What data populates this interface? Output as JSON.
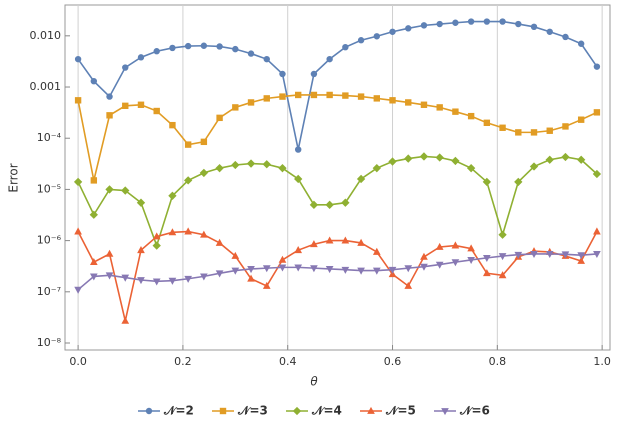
{
  "chart_data": {
    "type": "line",
    "x_label": "θ",
    "y_label": "Error",
    "log_y": true,
    "grid": "x",
    "legend": "bottom",
    "x": [
      0,
      0.03,
      0.06,
      0.09,
      0.12,
      0.15,
      0.18,
      0.21,
      0.24,
      0.27,
      0.3,
      0.33,
      0.36,
      0.39,
      0.42,
      0.45,
      0.48,
      0.51,
      0.54,
      0.57,
      0.6,
      0.63,
      0.66,
      0.69,
      0.72,
      0.75,
      0.78,
      0.81,
      0.84,
      0.87,
      0.9,
      0.93,
      0.96,
      0.99
    ],
    "xlim": [
      -0.025,
      1.015
    ],
    "xticks": [
      {
        "value": 0,
        "label": "0.0"
      },
      0.2,
      0.4,
      0.6,
      0.8,
      {
        "value": 1,
        "label": "1.0"
      }
    ],
    "ylim": [
      7.3e-09,
      0.04
    ],
    "yticks": [
      {
        "value": 1e-08,
        "label": "10⁻⁸"
      },
      {
        "value": 1e-07,
        "label": "10⁻⁷"
      },
      {
        "value": 1e-06,
        "label": "10⁻⁶"
      },
      {
        "value": 1e-05,
        "label": "10⁻⁵"
      },
      {
        "value": 0.0001,
        "label": "10⁻⁴"
      },
      0.001,
      {
        "value": 0.01,
        "label": "0.010"
      }
    ],
    "series": [
      {
        "name": "𝒩=2",
        "color": "#5e81b5",
        "marker": "circle",
        "values": [
          0.0035,
          0.0013,
          0.00065,
          0.0024,
          0.0038,
          0.005,
          0.0058,
          0.0063,
          0.0064,
          0.0062,
          0.0055,
          0.0045,
          0.0035,
          0.0018,
          6e-05,
          0.0018,
          0.0035,
          0.006,
          0.0082,
          0.0098,
          0.012,
          0.014,
          0.016,
          0.017,
          0.018,
          0.019,
          0.019,
          0.019,
          0.017,
          0.015,
          0.012,
          0.0095,
          0.007,
          0.0025
        ]
      },
      {
        "name": "𝒩=3",
        "color": "#e19c24",
        "marker": "square",
        "values": [
          0.00055,
          1.5e-05,
          0.00028,
          0.00043,
          0.00045,
          0.00034,
          0.00018,
          7.5e-05,
          8.5e-05,
          0.00025,
          0.0004,
          0.0005,
          0.0006,
          0.00065,
          0.0007,
          0.0007,
          0.0007,
          0.00068,
          0.00065,
          0.0006,
          0.00055,
          0.0005,
          0.00045,
          0.0004,
          0.00033,
          0.00027,
          0.0002,
          0.00016,
          0.00013,
          0.00013,
          0.00014,
          0.00017,
          0.00023,
          0.00032
        ]
      },
      {
        "name": "𝒩=4",
        "color": "#8fb032",
        "marker": "diamond",
        "values": [
          1.4e-05,
          3.2e-06,
          1e-05,
          9.5e-06,
          5.5e-06,
          8e-07,
          7.5e-06,
          1.5e-05,
          2.1e-05,
          2.6e-05,
          3e-05,
          3.2e-05,
          3.1e-05,
          2.6e-05,
          1.6e-05,
          5e-06,
          5e-06,
          5.5e-06,
          1.6e-05,
          2.6e-05,
          3.5e-05,
          4e-05,
          4.4e-05,
          4.2e-05,
          3.6e-05,
          2.6e-05,
          1.4e-05,
          1.3e-06,
          1.4e-05,
          2.8e-05,
          3.8e-05,
          4.3e-05,
          3.8e-05,
          2e-05
        ]
      },
      {
        "name": "𝒩=5",
        "color": "#eb6235",
        "marker": "triangle-up",
        "values": [
          1.5e-06,
          3.8e-07,
          5.5e-07,
          2.7e-08,
          6.5e-07,
          1.2e-06,
          1.45e-06,
          1.5e-06,
          1.3e-06,
          9e-07,
          5e-07,
          1.8e-07,
          1.3e-07,
          4.2e-07,
          6.5e-07,
          8.5e-07,
          1e-06,
          1e-06,
          9e-07,
          6e-07,
          2.2e-07,
          1.3e-07,
          4.8e-07,
          7.5e-07,
          8e-07,
          7e-07,
          2.3e-07,
          2.1e-07,
          4.8e-07,
          6.2e-07,
          6e-07,
          5e-07,
          4e-07,
          1.5e-06
        ]
      },
      {
        "name": "𝒩=6",
        "color": "#8778b3",
        "marker": "triangle-down",
        "values": [
          1.1e-07,
          2e-07,
          2.1e-07,
          1.9e-07,
          1.7e-07,
          1.6e-07,
          1.65e-07,
          1.8e-07,
          2e-07,
          2.3e-07,
          2.6e-07,
          2.8e-07,
          2.9e-07,
          3e-07,
          3e-07,
          2.9e-07,
          2.8e-07,
          2.7e-07,
          2.6e-07,
          2.6e-07,
          2.7e-07,
          2.9e-07,
          3.1e-07,
          3.4e-07,
          3.8e-07,
          4.2e-07,
          4.6e-07,
          5e-07,
          5.3e-07,
          5.5e-07,
          5.5e-07,
          5.4e-07,
          5.2e-07,
          5.5e-07
        ]
      }
    ]
  }
}
